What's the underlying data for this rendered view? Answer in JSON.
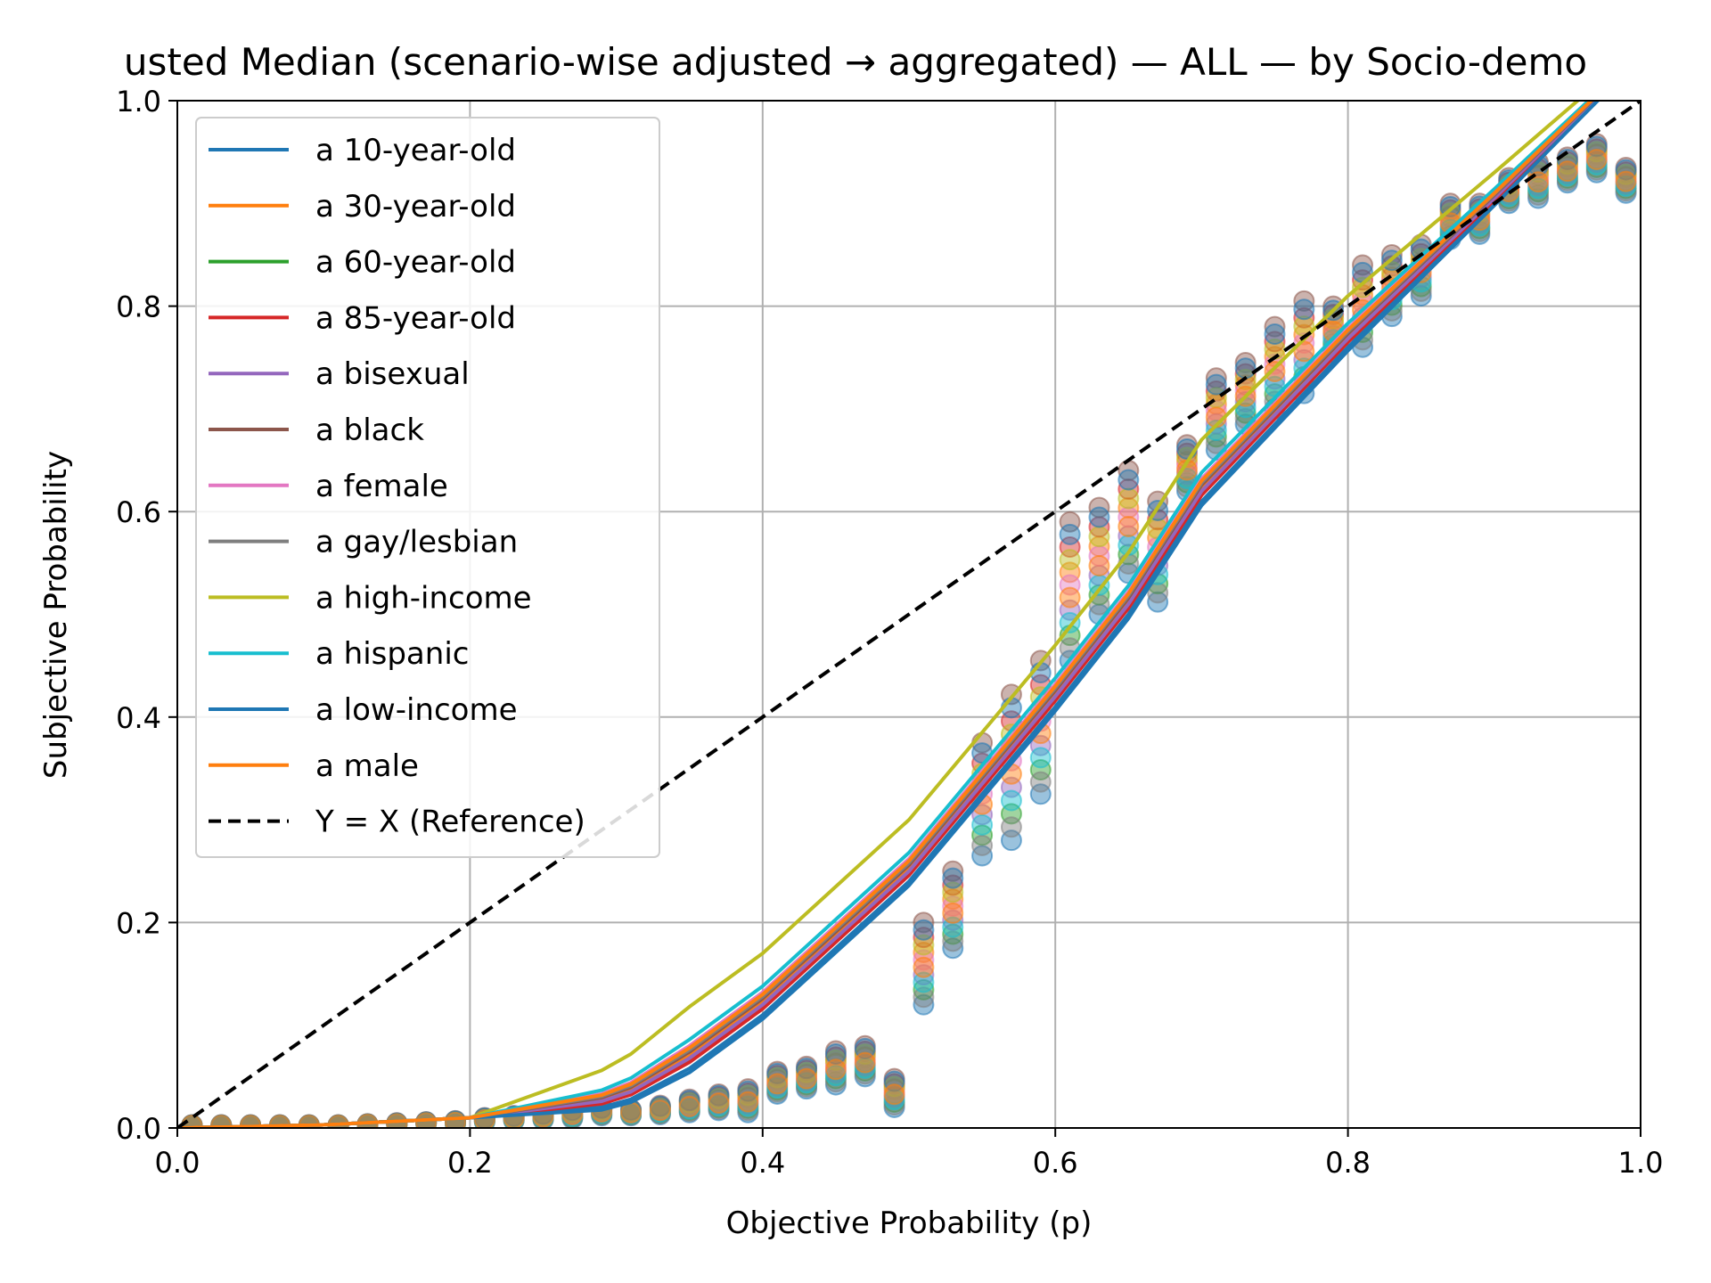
{
  "chart_data": {
    "type": "line",
    "title": "usted Median (scenario-wise adjusted → aggregated) — ALL — by Socio-demo",
    "xlabel": "Objective Probability (p)",
    "ylabel": "Subjective Probability",
    "xlim": [
      0,
      1
    ],
    "ylim": [
      0,
      1
    ],
    "xticks": [
      0.0,
      0.2,
      0.4,
      0.6,
      0.8,
      1.0
    ],
    "yticks": [
      0.0,
      0.2,
      0.4,
      0.6,
      0.8,
      1.0
    ],
    "xtick_labels": [
      "0.0",
      "0.2",
      "0.4",
      "0.6",
      "0.8",
      "1.0"
    ],
    "ytick_labels": [
      "0.0",
      "0.2",
      "0.4",
      "0.6",
      "0.8",
      "1.0"
    ],
    "grid": true,
    "legend_position": "upper-left",
    "base_curve": {
      "x": [
        0.0,
        0.1,
        0.2,
        0.29,
        0.31,
        0.35,
        0.4,
        0.5,
        0.6,
        0.65,
        0.7,
        0.8,
        0.9,
        0.97,
        1.0
      ],
      "y": [
        0.0,
        0.003,
        0.01,
        0.02,
        0.028,
        0.058,
        0.11,
        0.24,
        0.41,
        0.5,
        0.61,
        0.76,
        0.9,
        1.0,
        1.04
      ]
    },
    "series": [
      {
        "name": "a 10-year-old",
        "color": "#1f77b4",
        "shift": 0.0
      },
      {
        "name": "a 30-year-old",
        "color": "#ff7f0e",
        "shift": 0.012
      },
      {
        "name": "a 60-year-old",
        "color": "#2ca02c",
        "shift": 0.008
      },
      {
        "name": "a 85-year-old",
        "color": "#d62728",
        "shift": 0.006
      },
      {
        "name": "a bisexual",
        "color": "#9467bd",
        "shift": 0.01
      },
      {
        "name": "a black",
        "color": "#8c564b",
        "shift": 0.016
      },
      {
        "name": "a female",
        "color": "#e377c2",
        "shift": 0.022
      },
      {
        "name": "a gay/lesbian",
        "color": "#7f7f7f",
        "shift": 0.018
      },
      {
        "name": "a high-income",
        "color": "#bcbd22",
        "shift": 0.06
      },
      {
        "name": "a hispanic",
        "color": "#17becf",
        "shift": 0.028
      },
      {
        "name": "a low-income",
        "color": "#1f77b4",
        "shift": -0.004
      },
      {
        "name": "a male",
        "color": "#ff7f0e",
        "shift": 0.02
      }
    ],
    "reference_line": {
      "name": "Y = X (Reference)",
      "color": "#000000",
      "x": [
        0,
        1
      ],
      "y": [
        0,
        1
      ]
    },
    "scatter": {
      "x": [
        0.01,
        0.03,
        0.05,
        0.07,
        0.09,
        0.11,
        0.13,
        0.15,
        0.17,
        0.19,
        0.21,
        0.23,
        0.25,
        0.27,
        0.29,
        0.31,
        0.33,
        0.35,
        0.37,
        0.39,
        0.41,
        0.43,
        0.45,
        0.47,
        0.49,
        0.51,
        0.53,
        0.55,
        0.57,
        0.59,
        0.61,
        0.63,
        0.65,
        0.67,
        0.69,
        0.71,
        0.73,
        0.75,
        0.77,
        0.79,
        0.81,
        0.83,
        0.85,
        0.87,
        0.89,
        0.91,
        0.93,
        0.95,
        0.97,
        0.99
      ],
      "y_low": [
        0.002,
        0.002,
        0.002,
        0.002,
        0.002,
        0.002,
        0.003,
        0.003,
        0.004,
        0.004,
        0.006,
        0.007,
        0.008,
        0.009,
        0.012,
        0.012,
        0.013,
        0.015,
        0.017,
        0.015,
        0.033,
        0.038,
        0.042,
        0.05,
        0.02,
        0.12,
        0.175,
        0.265,
        0.28,
        0.325,
        0.455,
        0.5,
        0.54,
        0.512,
        0.62,
        0.66,
        0.685,
        0.7,
        0.715,
        0.755,
        0.76,
        0.79,
        0.81,
        0.865,
        0.87,
        0.9,
        0.905,
        0.92,
        0.93,
        0.91
      ],
      "y_high": [
        0.003,
        0.003,
        0.003,
        0.003,
        0.003,
        0.003,
        0.004,
        0.005,
        0.006,
        0.007,
        0.01,
        0.012,
        0.014,
        0.018,
        0.02,
        0.018,
        0.022,
        0.028,
        0.033,
        0.038,
        0.055,
        0.06,
        0.075,
        0.08,
        0.048,
        0.2,
        0.25,
        0.375,
        0.422,
        0.455,
        0.59,
        0.604,
        0.64,
        0.61,
        0.665,
        0.73,
        0.745,
        0.78,
        0.805,
        0.8,
        0.84,
        0.85,
        0.86,
        0.9,
        0.9,
        0.925,
        0.94,
        0.945,
        0.958,
        0.935
      ]
    }
  }
}
